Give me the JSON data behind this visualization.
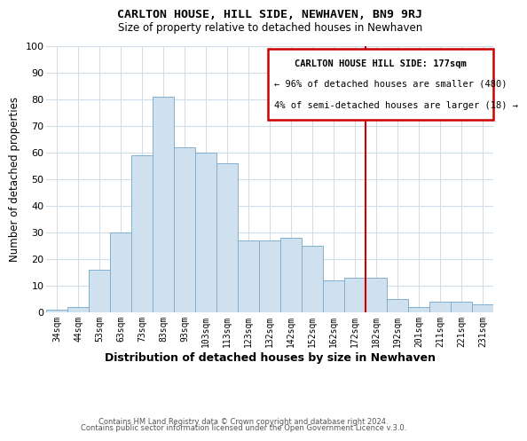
{
  "title": "CARLTON HOUSE, HILL SIDE, NEWHAVEN, BN9 9RJ",
  "subtitle": "Size of property relative to detached houses in Newhaven",
  "xlabel": "Distribution of detached houses by size in Newhaven",
  "ylabel": "Number of detached properties",
  "footer_line1": "Contains HM Land Registry data © Crown copyright and database right 2024.",
  "footer_line2": "Contains public sector information licensed under the Open Government Licence v.3.0.",
  "bar_labels": [
    "34sqm",
    "44sqm",
    "53sqm",
    "63sqm",
    "73sqm",
    "83sqm",
    "93sqm",
    "103sqm",
    "113sqm",
    "123sqm",
    "132sqm",
    "142sqm",
    "152sqm",
    "162sqm",
    "172sqm",
    "182sqm",
    "192sqm",
    "201sqm",
    "211sqm",
    "221sqm",
    "231sqm"
  ],
  "bar_values": [
    1,
    2,
    16,
    30,
    59,
    81,
    62,
    60,
    56,
    27,
    27,
    28,
    25,
    12,
    13,
    13,
    5,
    2,
    4,
    4,
    3
  ],
  "bar_color": "#cfe0ef",
  "bar_edge_color": "#7fb0d0",
  "grid_color": "#d0dde8",
  "vline_x_index": 15,
  "vline_color": "#cc0000",
  "annotation_title": "CARLTON HOUSE HILL SIDE: 177sqm",
  "annotation_line1": "← 96% of detached houses are smaller (480)",
  "annotation_line2": "4% of semi-detached houses are larger (18) →",
  "annotation_box_edge": "#cc0000",
  "ylim": [
    0,
    100
  ],
  "yticks": [
    0,
    10,
    20,
    30,
    40,
    50,
    60,
    70,
    80,
    90,
    100
  ]
}
